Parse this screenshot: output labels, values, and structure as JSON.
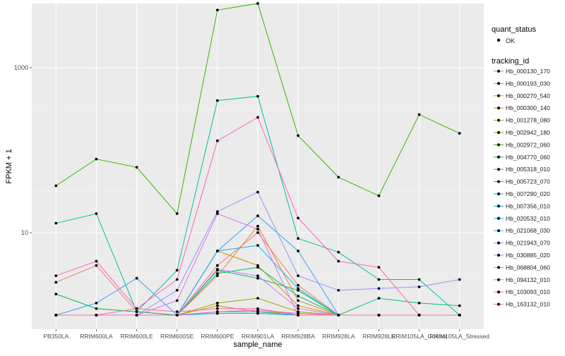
{
  "chart_data": {
    "type": "line",
    "title": "",
    "xlabel": "sample_name",
    "ylabel": "FPKM + 1",
    "y_scale": "log10",
    "ylim": [
      1,
      6000
    ],
    "y_ticks": [
      10,
      1000
    ],
    "y_tick_labels": [
      "10",
      "1000"
    ],
    "grid": true,
    "legend_placement": "right",
    "panel_background": "#ebebeb",
    "categories": [
      "PB350LA",
      "RRIM600LA",
      "RRIM600LE",
      "RRIM600SE",
      "RRIM600PE",
      "RRIM901LA",
      "RRIM928BA",
      "RRIM928LA",
      "RRIM928LE",
      "RRIM105LA_Control",
      "RRIM105LA_Stressed"
    ],
    "legend_shape": {
      "title": "quant_status",
      "items": [
        "OK"
      ]
    },
    "legend_color": {
      "title": "tracking_id"
    },
    "series": [
      {
        "name": "Hb_000130_170",
        "color": "#F8766D",
        "values": [
          2.5,
          4.0,
          1.1,
          1.0,
          4.0,
          10.0,
          2.3,
          1.0,
          1.0,
          1.0,
          1.0
        ]
      },
      {
        "name": "Hb_000193_030",
        "color": "#EA8331",
        "values": [
          1.0,
          1.0,
          1.0,
          1.0,
          3.0,
          12.0,
          1.5,
          1.0,
          1.0,
          1.0,
          1.0
        ]
      },
      {
        "name": "Hb_000270_540",
        "color": "#D89000",
        "values": [
          1.0,
          1.0,
          1.0,
          1.0,
          6.0,
          4.0,
          1.3,
          1.0,
          1.0,
          1.0,
          1.0
        ]
      },
      {
        "name": "Hb_000300_140",
        "color": "#C09B00",
        "values": [
          1.0,
          1.0,
          1.0,
          1.0,
          1.3,
          1.1,
          1.05,
          1.0,
          1.0,
          1.0,
          1.0
        ]
      },
      {
        "name": "Hb_001278_080",
        "color": "#A3A500",
        "values": [
          1.0,
          1.0,
          1.0,
          1.0,
          1.4,
          1.6,
          1.1,
          1.0,
          1.0,
          1.0,
          1.0
        ]
      },
      {
        "name": "Hb_002942_180",
        "color": "#7CAE00",
        "values": [
          1.0,
          1.0,
          1.0,
          1.0,
          1.05,
          1.05,
          1.0,
          1.0,
          1.0,
          1.0,
          1.0
        ]
      },
      {
        "name": "Hb_002972_060",
        "color": "#39B600",
        "values": [
          37.0,
          78.0,
          62.0,
          17.0,
          5000.0,
          6000.0,
          150.0,
          47.0,
          28.0,
          270.0,
          160.0
        ]
      },
      {
        "name": "Hb_004770_060",
        "color": "#00BB4E",
        "values": [
          1.8,
          1.2,
          1.1,
          1.0,
          3.5,
          2.8,
          2.0,
          1.0,
          1.0,
          1.0,
          1.0
        ]
      },
      {
        "name": "Hb_005318_010",
        "color": "#00BF7D",
        "values": [
          1.0,
          1.0,
          1.0,
          1.0,
          3.2,
          3.8,
          1.7,
          1.0,
          1.6,
          1.4,
          1.3
        ]
      },
      {
        "name": "Hb_005723_070",
        "color": "#00C1A3",
        "values": [
          13.0,
          17.0,
          1.1,
          3.5,
          400.0,
          450.0,
          8.5,
          5.8,
          2.7,
          2.7,
          1.0
        ]
      },
      {
        "name": "Hb_007290_020",
        "color": "#00BFC4",
        "values": [
          1.0,
          1.0,
          1.0,
          1.0,
          1.1,
          1.1,
          1.0,
          1.0,
          1.0,
          1.0,
          1.0
        ]
      },
      {
        "name": "Hb_007356_010",
        "color": "#00BAE0",
        "values": [
          1.0,
          1.0,
          1.0,
          1.0,
          6.0,
          7.0,
          2.1,
          1.0,
          1.0,
          1.0,
          1.0
        ]
      },
      {
        "name": "Hb_020532_010",
        "color": "#00B0F6",
        "values": [
          1.0,
          1.0,
          1.0,
          1.0,
          1.05,
          1.05,
          1.0,
          1.0,
          1.0,
          1.0,
          1.0
        ]
      },
      {
        "name": "Hb_021068_030",
        "color": "#35A2FF",
        "values": [
          1.0,
          1.4,
          2.8,
          1.0,
          6.0,
          16.0,
          6.0,
          1.0,
          1.0,
          1.0,
          1.0
        ]
      },
      {
        "name": "Hb_021943_070",
        "color": "#9590FF",
        "values": [
          1.0,
          1.0,
          1.0,
          2.0,
          18.0,
          31.0,
          3.0,
          2.0,
          2.1,
          2.2,
          2.7
        ]
      },
      {
        "name": "Hb_030885_020",
        "color": "#C77CFF",
        "values": [
          1.0,
          1.0,
          1.0,
          1.0,
          3.6,
          3.0,
          1.2,
          1.0,
          1.0,
          1.0,
          1.0
        ]
      },
      {
        "name": "Hb_068804_060",
        "color": "#E76BF3",
        "values": [
          1.0,
          1.0,
          1.0,
          1.5,
          17.0,
          11.0,
          1.0,
          1.0,
          1.0,
          1.0,
          1.0
        ]
      },
      {
        "name": "Hb_094132_010",
        "color": "#FA62DB",
        "values": [
          1.0,
          1.0,
          1.0,
          1.0,
          1.1,
          1.15,
          1.05,
          1.0,
          1.0,
          1.0,
          1.0
        ]
      },
      {
        "name": "Hb_103093_010",
        "color": "#FF62BC",
        "values": [
          3.0,
          4.5,
          1.2,
          2.7,
          130.0,
          250.0,
          15.0,
          4.5,
          3.8,
          1.0,
          1.0
        ]
      },
      {
        "name": "Hb_163132_010",
        "color": "#FF6C91",
        "values": [
          1.0,
          1.0,
          1.2,
          1.1,
          1.2,
          1.2,
          1.0,
          1.0,
          1.0,
          1.0,
          1.0
        ]
      }
    ]
  }
}
